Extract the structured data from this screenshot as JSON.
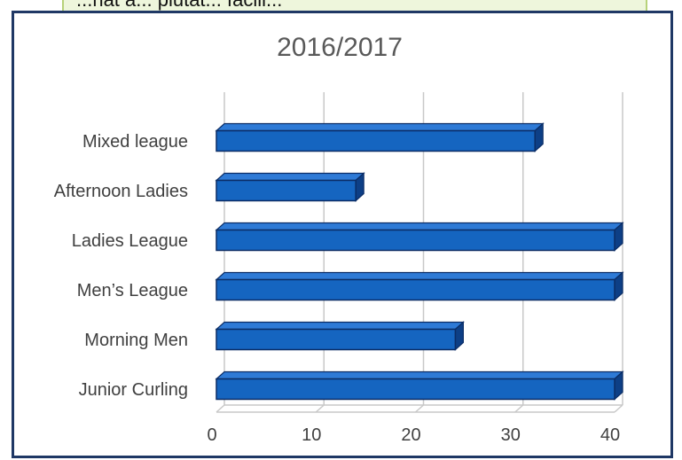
{
  "banner": {
    "text": "...hat a... plutat... facili..."
  },
  "chart_data": {
    "type": "bar",
    "orientation": "horizontal",
    "title": "2016/2017",
    "categories": [
      "Mixed league",
      "Afternoon Ladies",
      "Ladies League",
      "Men’s League",
      "Morning Men",
      "Junior Curling"
    ],
    "values": [
      32,
      14,
      40,
      40,
      24,
      40
    ],
    "xlim": [
      0,
      40
    ],
    "xticks": [
      0,
      10,
      20,
      30,
      40
    ],
    "grid": true,
    "legend": "none",
    "colors": {
      "bar_front": "#1565c0",
      "bar_side": "#0d3f86",
      "bar_top": "#2e7ad6",
      "bar_outline": "#0b2d66",
      "grid": "#c8c8c8",
      "text": "#404040",
      "title": "#595959"
    }
  }
}
